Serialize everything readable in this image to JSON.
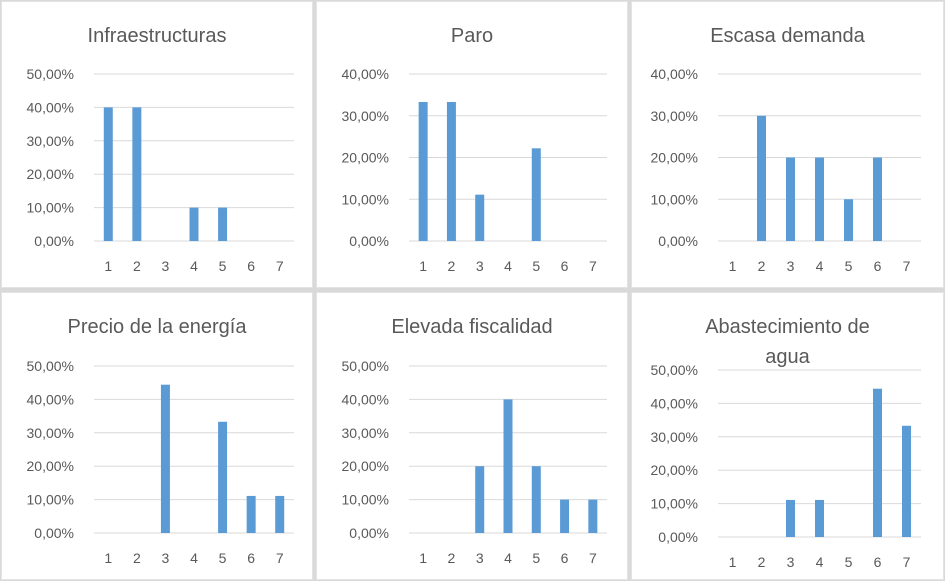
{
  "chart_data": [
    {
      "type": "bar",
      "title": [
        "Infraestructuras"
      ],
      "categories": [
        "1",
        "2",
        "3",
        "4",
        "5",
        "6",
        "7"
      ],
      "values": [
        40,
        40,
        0,
        10,
        10,
        0,
        0
      ],
      "ylim": [
        0,
        50
      ],
      "yticks": [
        "0,00%",
        "10,00%",
        "20,00%",
        "30,00%",
        "40,00%",
        "50,00%"
      ],
      "grid": true,
      "color": "#5b9bd5"
    },
    {
      "type": "bar",
      "title": [
        "Paro"
      ],
      "categories": [
        "1",
        "2",
        "3",
        "4",
        "5",
        "6",
        "7"
      ],
      "values": [
        33.3,
        33.3,
        11.1,
        0,
        22.2,
        0,
        0
      ],
      "ylim": [
        0,
        40
      ],
      "yticks": [
        "0,00%",
        "10,00%",
        "20,00%",
        "30,00%",
        "40,00%"
      ],
      "grid": true,
      "color": "#5b9bd5"
    },
    {
      "type": "bar",
      "title": [
        "Escasa demanda"
      ],
      "categories": [
        "1",
        "2",
        "3",
        "4",
        "5",
        "6",
        "7"
      ],
      "values": [
        0,
        30,
        20,
        20,
        10,
        20,
        0
      ],
      "ylim": [
        0,
        40
      ],
      "yticks": [
        "0,00%",
        "10,00%",
        "20,00%",
        "30,00%",
        "40,00%"
      ],
      "grid": true,
      "color": "#5b9bd5"
    },
    {
      "type": "bar",
      "title": [
        "Precio de la energía"
      ],
      "categories": [
        "1",
        "2",
        "3",
        "4",
        "5",
        "6",
        "7"
      ],
      "values": [
        0,
        0,
        44.4,
        0,
        33.3,
        11.1,
        11.1
      ],
      "ylim": [
        0,
        50
      ],
      "yticks": [
        "0,00%",
        "10,00%",
        "20,00%",
        "30,00%",
        "40,00%",
        "50,00%"
      ],
      "grid": true,
      "color": "#5b9bd5"
    },
    {
      "type": "bar",
      "title": [
        "Elevada fiscalidad"
      ],
      "categories": [
        "1",
        "2",
        "3",
        "4",
        "5",
        "6",
        "7"
      ],
      "values": [
        0,
        0,
        20,
        40,
        20,
        10,
        10
      ],
      "ylim": [
        0,
        50
      ],
      "yticks": [
        "0,00%",
        "10,00%",
        "20,00%",
        "30,00%",
        "40,00%",
        "50,00%"
      ],
      "grid": true,
      "color": "#5b9bd5"
    },
    {
      "type": "bar",
      "title": [
        "Abastecimiento de",
        "agua"
      ],
      "categories": [
        "1",
        "2",
        "3",
        "4",
        "5",
        "6",
        "7"
      ],
      "values": [
        0,
        0,
        11.1,
        11.1,
        0,
        44.4,
        33.3
      ],
      "ylim": [
        0,
        50
      ],
      "yticks": [
        "0,00%",
        "10,00%",
        "20,00%",
        "30,00%",
        "40,00%",
        "50,00%"
      ],
      "grid": true,
      "color": "#5b9bd5"
    }
  ]
}
